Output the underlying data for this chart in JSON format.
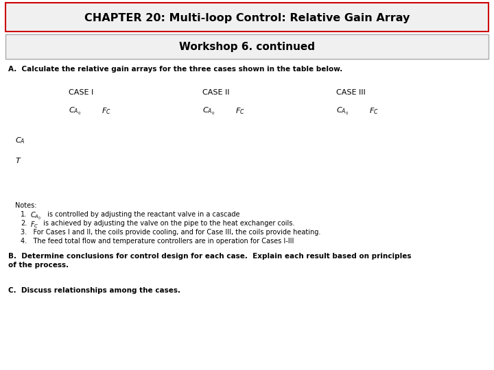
{
  "title": "CHAPTER 20: Multi-loop Control: Relative Gain Array",
  "subtitle": "Workshop 6. continued",
  "background_color": "#ffffff",
  "title_box_facecolor": "#f0f0f0",
  "title_border_color": "#cc0000",
  "subtitle_box_facecolor": "#f0f0f0",
  "subtitle_border_color": "#aaaaaa",
  "section_a": "A.  Calculate the relative gain arrays for the three cases shown in the table below.",
  "case_labels": [
    "CASE I",
    "CASE II",
    "CASE III"
  ],
  "row_labels_plain": [
    "C",
    "T"
  ],
  "notes_header": "Notes:",
  "note1_prefix": "1.",
  "note1_text": " is controlled by adjusting the reactant valve in a cascade",
  "note2_prefix": "2.",
  "note2_text": " is achieved by adjusting the valve on the pipe to the heat exchanger coils.",
  "note3": "3.   For Cases I and II, the coils provide cooling, and for Case III, the coils provide heating.",
  "note4": "4.   The feed total flow and temperature controllers are in operation for Cases I-III",
  "section_b_line1": "B.  Determine conclusions for control design for each case.  Explain each result based on principles",
  "section_b_line2": "of the process.",
  "section_c": "C.  Discuss relationships among the cases."
}
